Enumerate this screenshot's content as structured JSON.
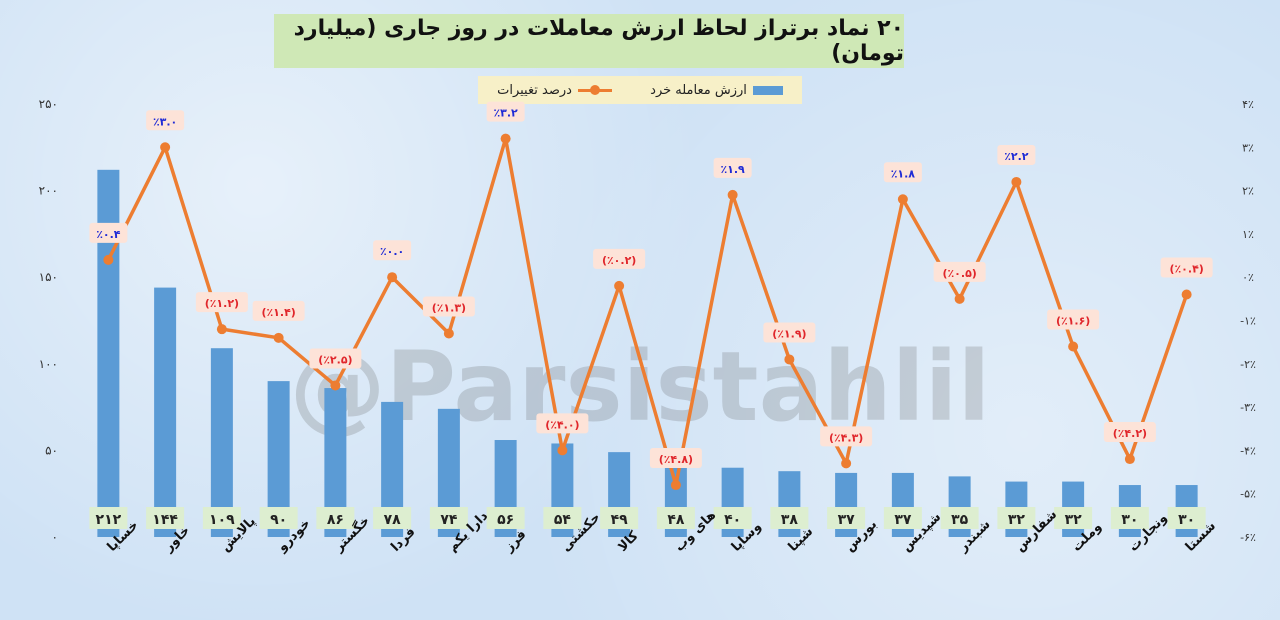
{
  "title": "۲۰ نماد برتراز لحاظ ارزش معاملات در روز جاری (میلیارد تومان)",
  "watermark": "@Parsistahlil",
  "colors": {
    "bar": "#5b9bd5",
    "line": "#ed7d31",
    "pct_positive": "#1f2bd6",
    "pct_negative": "#e0262b"
  },
  "chart_data": {
    "type": "bar",
    "title": "۲۰ نماد برتراز لحاظ ارزش معاملات در روز جاری (میلیارد تومان)",
    "legend_position": "top-center",
    "categories": [
      "خساپا",
      "خاور",
      "پالایش",
      "خودرو",
      "خگستر",
      "فردا",
      "دارا یکم",
      "فرز",
      "حکشتی",
      "کالا",
      "های وب",
      "وساپا",
      "شپنا",
      "بورس",
      "شپدیس",
      "شبندر",
      "شفارس",
      "وملت",
      "ونجارت",
      "شستا"
    ],
    "series": [
      {
        "name": "ارزش معامله خرد",
        "type": "bar",
        "axis": "left",
        "values": [
          212,
          144,
          109,
          90,
          86,
          78,
          74,
          56,
          54,
          49,
          48,
          40,
          38,
          37,
          37,
          35,
          32,
          32,
          30,
          30
        ],
        "labels": [
          "۲۱۲",
          "۱۴۴",
          "۱۰۹",
          "۹۰",
          "۸۶",
          "۷۸",
          "۷۴",
          "۵۶",
          "۵۴",
          "۴۹",
          "۴۸",
          "۴۰",
          "۳۸",
          "۳۷",
          "۳۷",
          "۳۵",
          "۳۲",
          "۳۲",
          "۳۰",
          "۳۰"
        ]
      },
      {
        "name": "درصد تغییرات",
        "type": "line",
        "axis": "right",
        "values": [
          0.4,
          3.0,
          -1.2,
          -1.4,
          -2.5,
          0.0,
          -1.3,
          3.2,
          -4.0,
          -0.2,
          -4.8,
          1.9,
          -1.9,
          -4.3,
          1.8,
          -0.5,
          2.2,
          -1.6,
          -4.2,
          -0.4
        ],
        "labels": [
          "٪۰.۴",
          "٪۳.۰",
          "(٪۱.۲)",
          "(٪۱.۴)",
          "(٪۲.۵)",
          "٪۰.۰",
          "(٪۱.۳)",
          "٪۳.۲",
          "(٪۴.۰)",
          "(٪۰.۲)",
          "(٪۴.۸)",
          "٪۱.۹",
          "(٪۱.۹)",
          "(٪۴.۳)",
          "٪۱.۸",
          "(٪۰.۵)",
          "٪۲.۲",
          "(٪۱.۶)",
          "(٪۴.۲)",
          "(٪۰.۴)"
        ]
      }
    ],
    "y_left": {
      "range": [
        0,
        250
      ],
      "ticks": [
        0,
        50,
        100,
        150,
        200,
        250
      ],
      "tick_labels": [
        "۰",
        "۵۰",
        "۱۰۰",
        "۱۵۰",
        "۲۰۰",
        "۲۵۰"
      ]
    },
    "y_right": {
      "range": [
        -6,
        4
      ],
      "ticks": [
        4,
        3,
        2,
        1,
        0,
        -1,
        -2,
        -3,
        -4,
        -5,
        -6
      ],
      "tick_labels": [
        "۴٪",
        "۳٪",
        "۲٪",
        "۱٪",
        "۰٪",
        "-۱٪",
        "-۲٪",
        "-۳٪",
        "-۴٪",
        "-۵٪",
        "-۶٪"
      ]
    },
    "grid": false
  }
}
